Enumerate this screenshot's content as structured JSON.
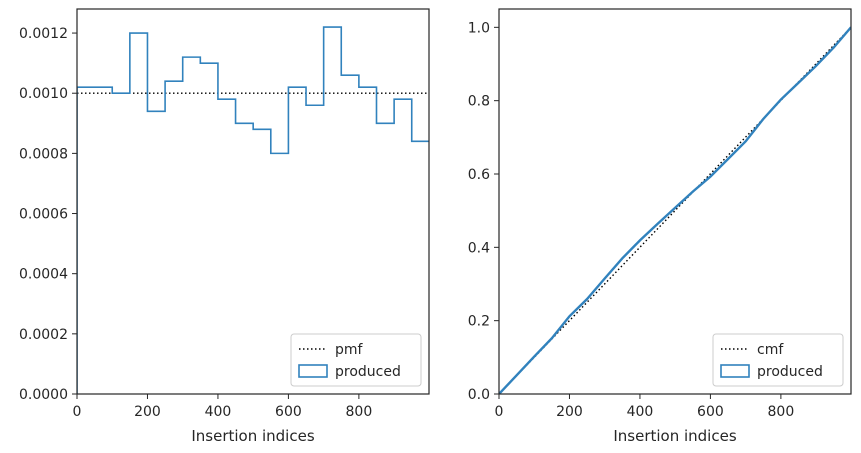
{
  "chart_data": [
    {
      "type": "step",
      "xlabel": "Insertion indices",
      "ylabel": "",
      "xlim": [
        0,
        999
      ],
      "ylim": [
        0,
        0.00128
      ],
      "xticks": [
        "0",
        "200",
        "400",
        "600",
        "800"
      ],
      "xtick_values": [
        0,
        200,
        400,
        600,
        800
      ],
      "yticks": [
        "0.0000",
        "0.0002",
        "0.0004",
        "0.0006",
        "0.0008",
        "0.0010",
        "0.0012"
      ],
      "ytick_values": [
        0,
        0.0002,
        0.0004,
        0.0006,
        0.0008,
        0.001,
        0.0012
      ],
      "legend_position": "lower-right",
      "series": [
        {
          "name": "pmf",
          "style": "dotted",
          "color": "#000000",
          "value": 0.001
        },
        {
          "name": "produced",
          "style": "step",
          "color": "#3182bd",
          "bin_edges": [
            0,
            50,
            100,
            150,
            200,
            250,
            300,
            350,
            400,
            450,
            500,
            550,
            600,
            650,
            700,
            750,
            800,
            850,
            900,
            950,
            1000
          ],
          "values": [
            0.00102,
            0.00102,
            0.001,
            0.0012,
            0.00094,
            0.00104,
            0.00112,
            0.0011,
            0.00098,
            0.0009,
            0.00088,
            0.0008,
            0.00102,
            0.00096,
            0.00122,
            0.00106,
            0.00102,
            0.0009,
            0.00098,
            0.00084
          ]
        }
      ]
    },
    {
      "type": "line",
      "xlabel": "Insertion indices",
      "ylabel": "",
      "xlim": [
        0,
        999
      ],
      "ylim": [
        0,
        1.05
      ],
      "xticks": [
        "0",
        "200",
        "400",
        "600",
        "800"
      ],
      "xtick_values": [
        0,
        200,
        400,
        600,
        800
      ],
      "yticks": [
        "0.0",
        "0.2",
        "0.4",
        "0.6",
        "0.8",
        "1.0"
      ],
      "ytick_values": [
        0,
        0.2,
        0.4,
        0.6,
        0.8,
        1.0
      ],
      "legend_position": "lower-right",
      "series": [
        {
          "name": "cmf",
          "style": "dotted",
          "color": "#000000",
          "x": [
            0,
            999
          ],
          "y": [
            0,
            1.0
          ]
        },
        {
          "name": "produced",
          "style": "solid",
          "color": "#3182bd",
          "x": [
            0,
            50,
            100,
            150,
            200,
            250,
            300,
            350,
            400,
            450,
            500,
            550,
            600,
            650,
            700,
            750,
            800,
            850,
            900,
            950,
            999
          ],
          "y": [
            0,
            0.051,
            0.102,
            0.152,
            0.212,
            0.259,
            0.315,
            0.37,
            0.419,
            0.464,
            0.508,
            0.552,
            0.593,
            0.641,
            0.689,
            0.75,
            0.803,
            0.849,
            0.895,
            0.945,
            1.0
          ]
        }
      ]
    }
  ]
}
